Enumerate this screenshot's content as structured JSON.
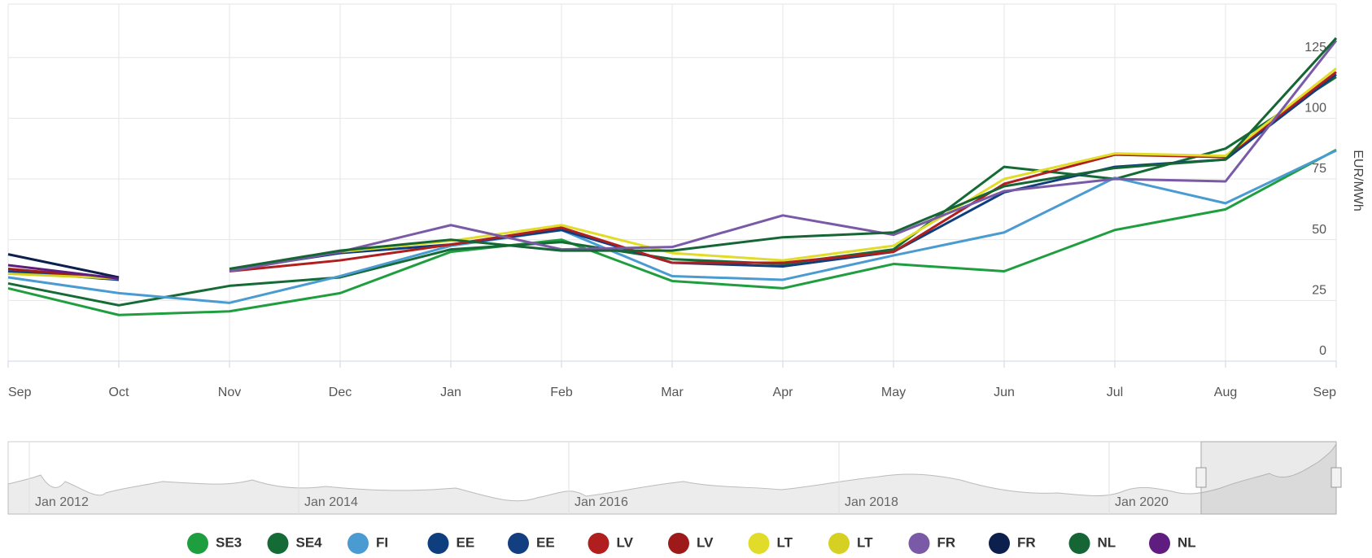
{
  "chart_data": {
    "type": "line",
    "y_label": "EUR/MWh",
    "categories": [
      "Sep",
      "Oct",
      "Nov",
      "Dec",
      "Jan",
      "Feb",
      "Mar",
      "Apr",
      "May",
      "Jun",
      "Jul",
      "Aug",
      "Sep"
    ],
    "ylim": [
      0,
      147
    ],
    "yticks": [
      0,
      25,
      50,
      75,
      100,
      125
    ],
    "grid": true,
    "series": [
      {
        "name": "SE3",
        "color": "#1f9e3f",
        "values": [
          30,
          19,
          20.5,
          28,
          45,
          50,
          33,
          30,
          40,
          37,
          54,
          62.5,
          87
        ]
      },
      {
        "name": "SE4",
        "color": "#146b35",
        "values": [
          32,
          23,
          31,
          34.5,
          46,
          49,
          42,
          40,
          46,
          80,
          75,
          87.5,
          117
        ]
      },
      {
        "name": "FI",
        "color": "#4a9bd1",
        "values": [
          34.5,
          28,
          24,
          35,
          47.5,
          54,
          35,
          33.5,
          43.5,
          53,
          75.5,
          65,
          86.7
        ]
      },
      {
        "name": "EE",
        "color": "#0e3e7e",
        "values": [
          null,
          null,
          37.5,
          44.5,
          48,
          54,
          40.5,
          39,
          45,
          69.5,
          80,
          83,
          118
        ]
      },
      {
        "name": "EE",
        "color": "#133f80",
        "values": [
          37,
          33.5,
          null,
          null,
          null,
          null,
          null,
          null,
          null,
          null,
          null,
          null,
          null
        ]
      },
      {
        "name": "LV",
        "color": "#b01e1e",
        "values": [
          null,
          null,
          37,
          41.5,
          48,
          55,
          40.5,
          40.5,
          45,
          73,
          85,
          84,
          119
        ]
      },
      {
        "name": "LV",
        "color": "#9e1a1a",
        "values": [
          38,
          34,
          null,
          null,
          null,
          null,
          null,
          null,
          null,
          null,
          null,
          null,
          null
        ]
      },
      {
        "name": "LT",
        "color": "#e1dc2a",
        "values": [
          null,
          null,
          37.5,
          45,
          49.5,
          56,
          44.5,
          41.5,
          47.5,
          75,
          85.5,
          84.5,
          120.5
        ]
      },
      {
        "name": "LT",
        "color": "#d6d023",
        "values": [
          36,
          34,
          null,
          null,
          null,
          null,
          null,
          null,
          null,
          null,
          null,
          null,
          null
        ]
      },
      {
        "name": "FR",
        "color": "#7a5aa6",
        "values": [
          null,
          null,
          37,
          45,
          56,
          46,
          47,
          60,
          52,
          70,
          75,
          74,
          132
        ]
      },
      {
        "name": "FR",
        "color": "#0d1f4d",
        "values": [
          44,
          34.5,
          null,
          null,
          null,
          null,
          null,
          null,
          null,
          null,
          null,
          null,
          null
        ]
      },
      {
        "name": "NL",
        "color": "#156634",
        "values": [
          null,
          null,
          38,
          45.5,
          50,
          45.5,
          45.5,
          51,
          53,
          72,
          79.5,
          83,
          133
        ]
      },
      {
        "name": "NL",
        "color": "#5f1d80",
        "values": [
          39.5,
          34,
          null,
          null,
          null,
          null,
          null,
          null,
          null,
          null,
          null,
          null,
          null
        ]
      }
    ],
    "navigator_labels": [
      "Jan 2012",
      "Jan 2014",
      "Jan 2016",
      "Jan 2018",
      "Jan 2020"
    ]
  }
}
